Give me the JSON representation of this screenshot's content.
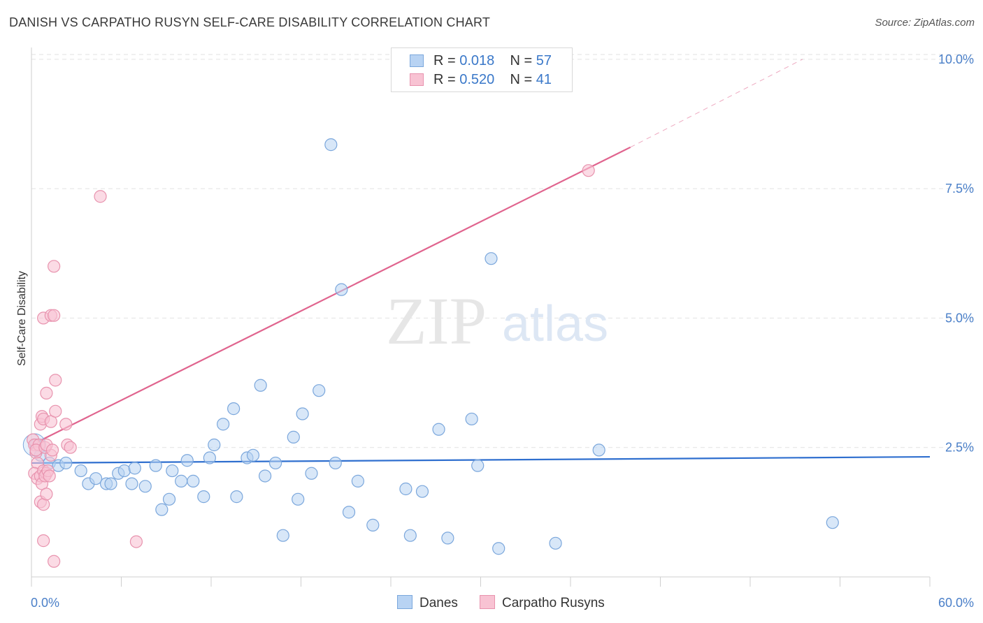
{
  "title": "DANISH VS CARPATHO RUSYN SELF-CARE DISABILITY CORRELATION CHART",
  "source": "Source: ZipAtlas.com",
  "watermark": {
    "zip": "ZIP",
    "atlas": "atlas"
  },
  "legend": {
    "rows": [
      {
        "r_label": "R = ",
        "r_value": "0.018",
        "n_label": "N = ",
        "n_value": "57"
      },
      {
        "r_label": "R = ",
        "r_value": "0.520",
        "n_label": "N = ",
        "n_value": "41"
      }
    ]
  },
  "bottom_legend": {
    "danes": "Danes",
    "carpatho": "Carpatho Rusyns"
  },
  "colors": {
    "danes_fill": "#b8d3f3",
    "danes_stroke": "#7ba7dc",
    "danes_line": "#2f6fcf",
    "carpatho_fill": "#f8c3d3",
    "carpatho_stroke": "#e893ae",
    "carpatho_line": "#e0648e",
    "tick_text": "#4a7fc8",
    "grid": "#e2e2e2"
  },
  "chart_data": {
    "type": "scatter",
    "title": "DANISH VS CARPATHO RUSYN SELF-CARE DISABILITY CORRELATION CHART",
    "xlabel": "",
    "ylabel": "Self-Care Disability",
    "xlim": [
      0,
      60
    ],
    "ylim": [
      0,
      10.2
    ],
    "x_tick_labels": [
      "0.0%",
      "60.0%"
    ],
    "y_ticks": [
      2.5,
      5.0,
      7.5,
      10.0
    ],
    "y_tick_labels": [
      "2.5%",
      "5.0%",
      "7.5%",
      "10.0%"
    ],
    "grid": true,
    "legend_position": "top-center",
    "series": [
      {
        "name": "Danes",
        "r": 0.018,
        "n": 57,
        "trend": {
          "x": [
            0,
            60
          ],
          "y": [
            2.2,
            2.32
          ]
        },
        "points": [
          [
            0.3,
            2.55
          ],
          [
            0.6,
            2.35
          ],
          [
            1.2,
            2.2
          ],
          [
            1.8,
            2.15
          ],
          [
            2.3,
            2.2
          ],
          [
            3.3,
            2.05
          ],
          [
            3.8,
            1.8
          ],
          [
            4.3,
            1.9
          ],
          [
            5.0,
            1.8
          ],
          [
            5.3,
            1.8
          ],
          [
            5.8,
            2.0
          ],
          [
            6.2,
            2.05
          ],
          [
            6.9,
            2.1
          ],
          [
            6.7,
            1.8
          ],
          [
            7.6,
            1.75
          ],
          [
            8.3,
            2.15
          ],
          [
            8.7,
            1.3
          ],
          [
            9.2,
            1.5
          ],
          [
            9.4,
            2.05
          ],
          [
            10.0,
            1.85
          ],
          [
            10.4,
            2.25
          ],
          [
            10.8,
            1.85
          ],
          [
            11.5,
            1.55
          ],
          [
            11.9,
            2.3
          ],
          [
            12.2,
            2.55
          ],
          [
            12.8,
            2.95
          ],
          [
            13.5,
            3.25
          ],
          [
            13.7,
            1.55
          ],
          [
            14.4,
            2.3
          ],
          [
            14.8,
            2.35
          ],
          [
            15.3,
            3.7
          ],
          [
            15.6,
            1.95
          ],
          [
            16.3,
            2.2
          ],
          [
            16.8,
            0.8
          ],
          [
            17.5,
            2.7
          ],
          [
            17.8,
            1.5
          ],
          [
            18.1,
            3.15
          ],
          [
            18.7,
            2.0
          ],
          [
            19.2,
            3.6
          ],
          [
            20.0,
            8.35
          ],
          [
            20.3,
            2.2
          ],
          [
            20.7,
            5.55
          ],
          [
            21.2,
            1.25
          ],
          [
            21.8,
            1.85
          ],
          [
            22.8,
            1.0
          ],
          [
            25.0,
            1.7
          ],
          [
            25.3,
            0.8
          ],
          [
            26.1,
            1.65
          ],
          [
            27.2,
            2.85
          ],
          [
            27.8,
            0.75
          ],
          [
            29.4,
            3.05
          ],
          [
            29.8,
            2.15
          ],
          [
            30.7,
            6.15
          ],
          [
            31.2,
            0.55
          ],
          [
            35.0,
            0.65
          ],
          [
            37.9,
            2.45
          ],
          [
            53.5,
            1.05
          ]
        ]
      },
      {
        "name": "Carpatho Rusyns",
        "r": 0.52,
        "n": 41,
        "trend": {
          "x": [
            0,
            40
          ],
          "y": [
            2.55,
            8.3
          ]
        },
        "trend_dashed": {
          "x": [
            40,
            51.5
          ],
          "y": [
            8.3,
            10.0
          ]
        },
        "points": [
          [
            0.1,
            2.65
          ],
          [
            0.2,
            2.55
          ],
          [
            0.3,
            2.4
          ],
          [
            0.4,
            2.2
          ],
          [
            0.2,
            2.0
          ],
          [
            0.4,
            1.9
          ],
          [
            0.6,
            1.95
          ],
          [
            0.7,
            1.8
          ],
          [
            0.5,
            2.55
          ],
          [
            0.3,
            2.45
          ],
          [
            0.8,
            2.05
          ],
          [
            1.0,
            2.0
          ],
          [
            0.9,
            1.95
          ],
          [
            1.1,
            2.05
          ],
          [
            1.2,
            1.95
          ],
          [
            1.3,
            2.35
          ],
          [
            0.9,
            2.5
          ],
          [
            1.0,
            2.55
          ],
          [
            1.4,
            2.45
          ],
          [
            0.6,
            2.95
          ],
          [
            0.7,
            3.1
          ],
          [
            0.8,
            3.05
          ],
          [
            1.0,
            3.55
          ],
          [
            1.3,
            3.0
          ],
          [
            1.6,
            3.2
          ],
          [
            2.3,
            2.95
          ],
          [
            2.4,
            2.55
          ],
          [
            2.6,
            2.5
          ],
          [
            1.6,
            3.8
          ],
          [
            0.8,
            5.0
          ],
          [
            1.3,
            5.05
          ],
          [
            1.5,
            5.05
          ],
          [
            1.5,
            6.0
          ],
          [
            4.6,
            7.35
          ],
          [
            0.6,
            1.45
          ],
          [
            0.8,
            1.4
          ],
          [
            1.0,
            1.6
          ],
          [
            0.8,
            0.7
          ],
          [
            1.5,
            0.3
          ],
          [
            7.0,
            0.68
          ],
          [
            37.2,
            7.85
          ]
        ]
      }
    ]
  }
}
